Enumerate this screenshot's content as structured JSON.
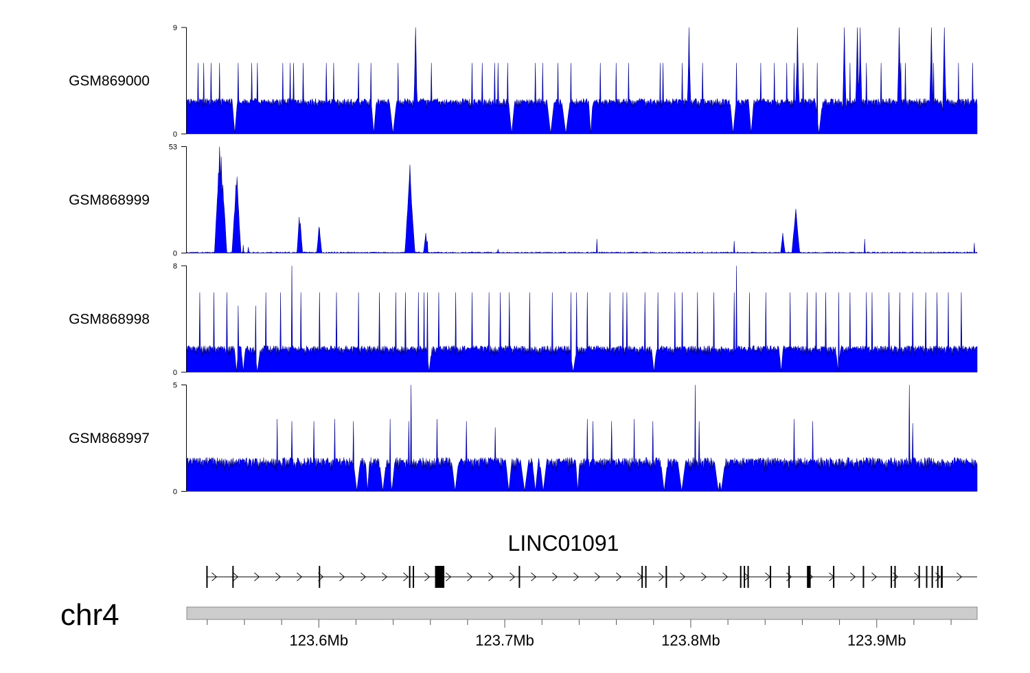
{
  "chart_data": {
    "type": "area",
    "title": "",
    "xlabel": "",
    "ylabel": "",
    "chromosome": "chr4",
    "xlim": [
      123.529,
      123.954
    ],
    "x_unit": "Mb",
    "x_ticks": [
      {
        "value": 123.6,
        "label": "123.6Mb"
      },
      {
        "value": 123.7,
        "label": "123.7Mb"
      },
      {
        "value": 123.8,
        "label": "123.8Mb"
      },
      {
        "value": 123.9,
        "label": "123.9Mb"
      }
    ],
    "x_minor_ticks": [
      123.54,
      123.56,
      123.58,
      123.62,
      123.64,
      123.66,
      123.68,
      123.72,
      123.74,
      123.76,
      123.78,
      123.82,
      123.84,
      123.86,
      123.88,
      123.92,
      123.94
    ],
    "series": [
      {
        "name": "GSM869000",
        "ylim": [
          0,
          9
        ],
        "ytick_labels": [
          "0",
          "9"
        ],
        "baseline": 3,
        "noise": 0.9,
        "dips": 12,
        "seed": 11,
        "peaks": [
          [
            123.535,
            6
          ],
          [
            123.538,
            6
          ],
          [
            123.542,
            6
          ],
          [
            123.5465,
            6
          ],
          [
            123.5565,
            6
          ],
          [
            123.564,
            6
          ],
          [
            123.567,
            6
          ],
          [
            123.5805,
            6
          ],
          [
            123.5845,
            6
          ],
          [
            123.5865,
            6
          ],
          [
            123.5915,
            6
          ],
          [
            123.604,
            6
          ],
          [
            123.608,
            6
          ],
          [
            123.6215,
            6
          ],
          [
            123.628,
            6
          ],
          [
            123.652,
            9
          ],
          [
            123.6425,
            6
          ],
          [
            123.6605,
            6
          ],
          [
            123.6825,
            6
          ],
          [
            123.688,
            6
          ],
          [
            123.6945,
            6
          ],
          [
            123.6965,
            6
          ],
          [
            123.7015,
            6
          ],
          [
            123.7165,
            6
          ],
          [
            123.7205,
            6
          ],
          [
            123.7285,
            6
          ],
          [
            123.7355,
            6
          ],
          [
            123.7515,
            6
          ],
          [
            123.76,
            6
          ],
          [
            123.7665,
            6
          ],
          [
            123.7835,
            6
          ],
          [
            123.785,
            6
          ],
          [
            123.7955,
            6
          ],
          [
            123.799,
            9
          ],
          [
            123.8065,
            6
          ],
          [
            123.8245,
            6
          ],
          [
            123.8375,
            6
          ],
          [
            123.845,
            6
          ],
          [
            123.8515,
            6
          ],
          [
            123.8555,
            6
          ],
          [
            123.8605,
            6
          ],
          [
            123.868,
            6
          ],
          [
            123.8825,
            9
          ],
          [
            123.8855,
            6
          ],
          [
            123.8945,
            6
          ],
          [
            123.9025,
            6
          ],
          [
            123.913,
            6
          ],
          [
            123.9155,
            6
          ],
          [
            123.9305,
            6
          ],
          [
            123.944,
            6
          ],
          [
            123.9515,
            6
          ],
          [
            123.891,
            9
          ],
          [
            123.912,
            9
          ],
          [
            123.8575,
            9
          ],
          [
            123.9295,
            9
          ],
          [
            123.9365,
            9
          ],
          [
            123.8895,
            9
          ]
        ]
      },
      {
        "name": "GSM868999",
        "ylim": [
          0,
          53
        ],
        "ytick_labels": [
          "0",
          "53"
        ],
        "baseline": 0.6,
        "noise": 1.2,
        "dips": 0,
        "seed": 23,
        "peaks": [
          [
            123.546,
            40
          ],
          [
            123.5465,
            53
          ],
          [
            123.5475,
            48
          ],
          [
            123.5485,
            34
          ],
          [
            123.5555,
            34
          ],
          [
            123.556,
            38
          ],
          [
            123.5595,
            4
          ],
          [
            123.562,
            3
          ],
          [
            123.5895,
            18
          ],
          [
            123.59,
            15
          ],
          [
            123.6,
            13
          ],
          [
            123.6005,
            12
          ],
          [
            123.6485,
            32
          ],
          [
            123.649,
            44
          ],
          [
            123.6495,
            30
          ],
          [
            123.6575,
            10
          ],
          [
            123.6585,
            6
          ],
          [
            123.6495,
            18
          ],
          [
            123.6965,
            2
          ],
          [
            123.7495,
            7
          ],
          [
            123.8235,
            6
          ],
          [
            123.8495,
            10
          ],
          [
            123.8565,
            22
          ],
          [
            123.8575,
            12
          ],
          [
            123.8935,
            7
          ],
          [
            123.9525,
            5
          ]
        ]
      },
      {
        "name": "GSM868998",
        "ylim": [
          0,
          8
        ],
        "ytick_labels": [
          "0",
          "8"
        ],
        "baseline": 2,
        "noise": 0.8,
        "dips": 8,
        "seed": 37,
        "peaks": [
          [
            123.536,
            6
          ],
          [
            123.5435,
            6
          ],
          [
            123.5505,
            6
          ],
          [
            123.5565,
            5
          ],
          [
            123.566,
            5
          ],
          [
            123.5715,
            6
          ],
          [
            123.5795,
            6
          ],
          [
            123.5855,
            8
          ],
          [
            123.5905,
            6
          ],
          [
            123.6005,
            6
          ],
          [
            123.6095,
            6
          ],
          [
            123.6215,
            6
          ],
          [
            123.6325,
            6
          ],
          [
            123.6415,
            6
          ],
          [
            123.6465,
            6
          ],
          [
            123.6535,
            6
          ],
          [
            123.6565,
            6
          ],
          [
            123.6585,
            6
          ],
          [
            123.6645,
            6
          ],
          [
            123.6735,
            6
          ],
          [
            123.6825,
            6
          ],
          [
            123.6915,
            6
          ],
          [
            123.6975,
            6
          ],
          [
            123.7025,
            6
          ],
          [
            123.7135,
            6
          ],
          [
            123.7255,
            6
          ],
          [
            123.7355,
            6
          ],
          [
            123.7385,
            6
          ],
          [
            123.7445,
            6
          ],
          [
            123.7565,
            6
          ],
          [
            123.7635,
            6
          ],
          [
            123.7655,
            6
          ],
          [
            123.7755,
            6
          ],
          [
            123.7825,
            6
          ],
          [
            123.7915,
            6
          ],
          [
            123.7955,
            6
          ],
          [
            123.8035,
            6
          ],
          [
            123.8125,
            6
          ],
          [
            123.8245,
            8
          ],
          [
            123.8235,
            6
          ],
          [
            123.8315,
            6
          ],
          [
            123.8405,
            6
          ],
          [
            123.8535,
            6
          ],
          [
            123.8625,
            6
          ],
          [
            123.8675,
            6
          ],
          [
            123.8725,
            6
          ],
          [
            123.8795,
            6
          ],
          [
            123.8855,
            6
          ],
          [
            123.8945,
            6
          ],
          [
            123.8975,
            6
          ],
          [
            123.9065,
            6
          ],
          [
            123.9125,
            6
          ],
          [
            123.9195,
            6
          ],
          [
            123.9265,
            6
          ],
          [
            123.9325,
            6
          ],
          [
            123.9385,
            6
          ],
          [
            123.9455,
            6
          ]
        ]
      },
      {
        "name": "GSM868997",
        "ylim": [
          0,
          5
        ],
        "ytick_labels": [
          "0",
          "5"
        ],
        "baseline": 1.6,
        "noise": 0.7,
        "dips": 14,
        "seed": 53,
        "peaks": [
          [
            123.5775,
            3.4
          ],
          [
            123.5855,
            3.3
          ],
          [
            123.5975,
            3.3
          ],
          [
            123.6085,
            3.4
          ],
          [
            123.6185,
            3.3
          ],
          [
            123.6385,
            3.4
          ],
          [
            123.6485,
            3.3
          ],
          [
            123.6495,
            5
          ],
          [
            123.6635,
            3.4
          ],
          [
            123.6795,
            3.3
          ],
          [
            123.695,
            3
          ],
          [
            123.7445,
            3.4
          ],
          [
            123.7475,
            3.3
          ],
          [
            123.7575,
            3.3
          ],
          [
            123.7695,
            3.4
          ],
          [
            123.7795,
            3.3
          ],
          [
            123.8025,
            5
          ],
          [
            123.8045,
            3.3
          ],
          [
            123.8555,
            3.4
          ],
          [
            123.8655,
            3.3
          ],
          [
            123.9175,
            5
          ],
          [
            123.9195,
            3.2
          ]
        ]
      }
    ]
  },
  "track_labels": [
    "GSM869000",
    "GSM868999",
    "GSM868998",
    "GSM868997"
  ],
  "gene_track": {
    "gene_name": "LINC01091",
    "exons": [
      [
        123.5395,
        123.5402
      ],
      [
        123.5535,
        123.5542
      ],
      [
        123.6,
        123.6003
      ],
      [
        123.6485,
        123.6491
      ],
      [
        123.6505,
        123.6511
      ],
      [
        123.6625,
        123.6675
      ],
      [
        123.7075,
        123.7078
      ],
      [
        123.7735,
        123.7741
      ],
      [
        123.7755,
        123.7761
      ],
      [
        123.7865,
        123.7868
      ],
      [
        123.8265,
        123.8271
      ],
      [
        123.8285,
        123.8291
      ],
      [
        123.8305,
        123.8311
      ],
      [
        123.8425,
        123.8428
      ],
      [
        123.8525,
        123.8528
      ],
      [
        123.8625,
        123.8645
      ],
      [
        123.8765,
        123.8772
      ],
      [
        123.8925,
        123.8928
      ],
      [
        123.9075,
        123.9081
      ],
      [
        123.9095,
        123.9101
      ],
      [
        123.9225,
        123.9231
      ],
      [
        123.9265,
        123.9271
      ],
      [
        123.9295,
        123.9301
      ],
      [
        123.9325,
        123.9331
      ],
      [
        123.9345,
        123.9355
      ]
    ]
  },
  "colors": {
    "signal": "#0000ff",
    "outline": "#00007f",
    "ideogram": "#cccccc"
  }
}
